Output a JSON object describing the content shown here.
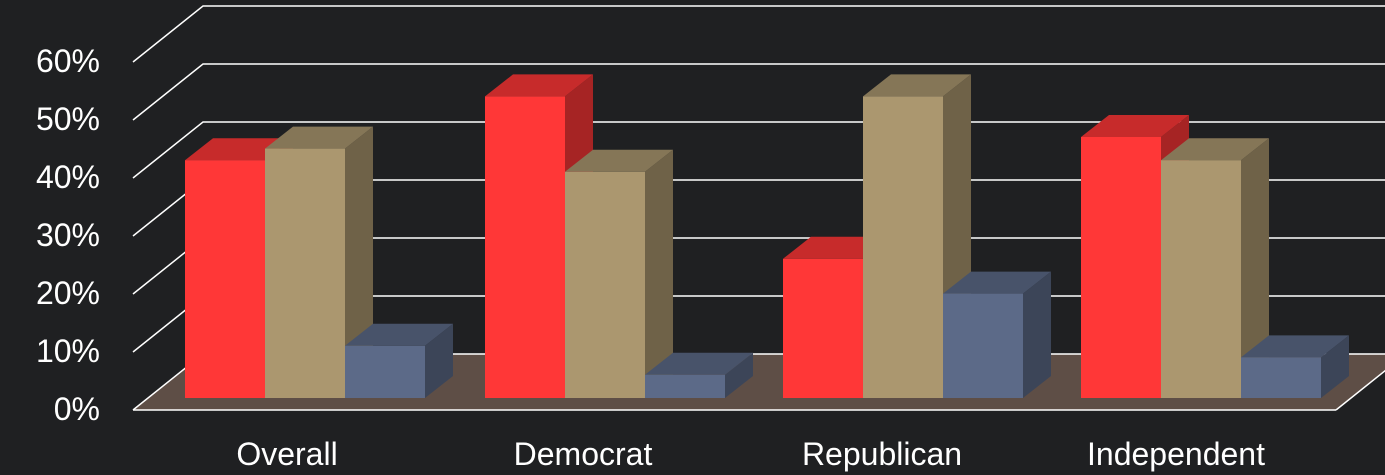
{
  "chart_data": {
    "type": "bar",
    "categories": [
      "Overall",
      "Democrat",
      "Republican",
      "Independent"
    ],
    "series": [
      {
        "values": [
          41,
          52,
          24,
          45
        ],
        "color": "#ff3737"
      },
      {
        "values": [
          43,
          39,
          52,
          41
        ],
        "color": "#ab976f"
      },
      {
        "values": [
          9,
          4,
          18,
          7
        ],
        "color": "#5c6a88"
      }
    ],
    "ylim": [
      0,
      60
    ],
    "yticks": [
      "0%",
      "10%",
      "20%",
      "30%",
      "40%",
      "50%",
      "60%"
    ],
    "grid": true,
    "floor_color": "#5e4e46",
    "gridline_color": "#ffffff",
    "background": "#1f2022",
    "style": "3d"
  }
}
